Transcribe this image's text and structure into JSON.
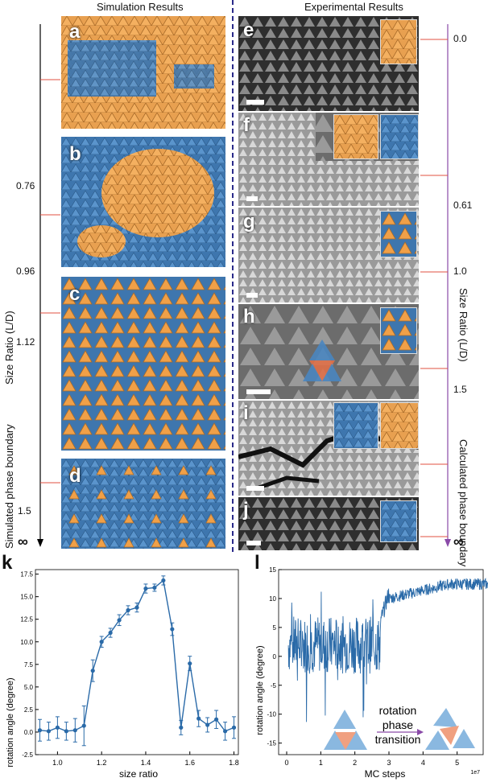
{
  "headers": {
    "simulation": "Simulation Results",
    "experimental": "Experimental Results"
  },
  "left_axis": {
    "label": "Size Ratio (L/D)",
    "boundary_label": "Simulated phase boundary",
    "ticks": [
      "0.76",
      "0.96",
      "1.12",
      "1.5",
      "∞"
    ]
  },
  "right_axis": {
    "label": "Size Ratio (L/D)",
    "boundary_label": "Calculated phase boundary",
    "ticks": [
      "0.0",
      "0.61",
      "1.0",
      "1.5",
      "∞"
    ]
  },
  "panels": {
    "sim": [
      "a",
      "b",
      "c",
      "d"
    ],
    "exp": [
      "e",
      "f",
      "g",
      "h",
      "i",
      "j"
    ]
  },
  "colors": {
    "orange": "#f0a048",
    "blue": "#4a86c0",
    "purple": "#8a4aa8",
    "red_mark": "#e05040",
    "divider": "#2a2a8a"
  },
  "plot_k": {
    "label": "k",
    "xlabel": "size ratio",
    "ylabel": "rotation angle (degree)",
    "xticks": [
      "1.0",
      "1.2",
      "1.4",
      "1.6",
      "1.8"
    ],
    "yticks": [
      "-2.5",
      "0.0",
      "2.5",
      "5.0",
      "7.5",
      "10.0",
      "12.5",
      "15.0",
      "17.5"
    ]
  },
  "plot_l": {
    "label": "l",
    "xlabel": "MC steps",
    "ylabel": "rotation angle (degree)",
    "xticks": [
      "0",
      "1",
      "2",
      "3",
      "4",
      "5",
      "6"
    ],
    "yticks": [
      "15",
      "10",
      "5",
      "0",
      "-5",
      "-10",
      "-15"
    ],
    "exponent": "1e7",
    "annotation": [
      "rotation",
      "phase",
      "transition"
    ]
  },
  "chart_data": [
    {
      "type": "line",
      "title": "",
      "xlabel": "size ratio",
      "ylabel": "rotation angle (degree)",
      "xlim": [
        0.9,
        1.82
      ],
      "ylim": [
        -2.5,
        18
      ],
      "x": [
        0.92,
        0.96,
        1.0,
        1.04,
        1.08,
        1.12,
        1.16,
        1.2,
        1.24,
        1.28,
        1.32,
        1.36,
        1.4,
        1.44,
        1.48,
        1.52,
        1.56,
        1.6,
        1.64,
        1.68,
        1.72,
        1.76,
        1.8
      ],
      "series": [
        {
          "values": [
            0.2,
            0.1,
            0.5,
            0.1,
            0.2,
            0.7,
            6.8,
            10.0,
            11.0,
            12.4,
            13.5,
            13.8,
            15.9,
            16.0,
            16.8,
            11.4,
            0.5,
            7.6,
            1.5,
            0.8,
            1.4,
            0.1,
            0.5
          ],
          "errors": [
            1.2,
            1.0,
            1.2,
            1.0,
            1.3,
            2.2,
            1.2,
            0.6,
            0.5,
            0.6,
            0.5,
            0.5,
            0.5,
            0.4,
            0.5,
            0.7,
            0.8,
            0.8,
            0.9,
            0.8,
            1.0,
            1.0,
            1.2
          ]
        }
      ]
    },
    {
      "type": "line",
      "title": "",
      "xlabel": "MC steps",
      "ylabel": "rotation angle (degree)",
      "xlim": [
        0,
        6
      ],
      "ylim": [
        -17,
        15
      ],
      "series": [
        {
          "description_points": [
            [
              0,
              2
            ],
            [
              0.5,
              1
            ],
            [
              1,
              3
            ],
            [
              1.5,
              0
            ],
            [
              2,
              2
            ],
            [
              2.5,
              1
            ],
            [
              2.7,
              -5
            ],
            [
              2.8,
              8
            ],
            [
              3,
              10
            ],
            [
              3.5,
              11
            ],
            [
              4,
              11.5
            ],
            [
              5,
              12
            ],
            [
              6,
              12.5
            ]
          ]
        }
      ]
    }
  ]
}
